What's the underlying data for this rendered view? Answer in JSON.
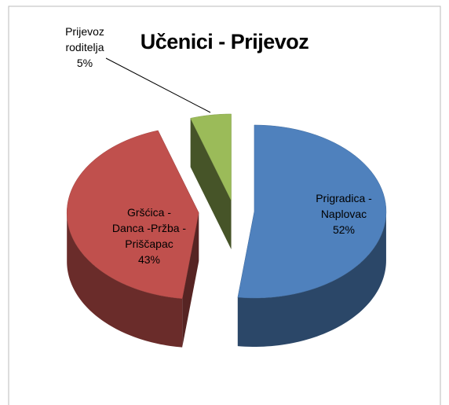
{
  "chart_data": {
    "type": "pie",
    "title": "Učenici - Prijevoz",
    "categories": [
      "Prigradica - Naplovac",
      "Gršćica - Danca -Pržba - Priščapac",
      "Prijevoz roditelja"
    ],
    "values": [
      52,
      43,
      5
    ],
    "value_labels": [
      "52%",
      "43%",
      "5%"
    ],
    "colors": [
      "#4f81bd",
      "#c0504d",
      "#9bbb59"
    ]
  }
}
